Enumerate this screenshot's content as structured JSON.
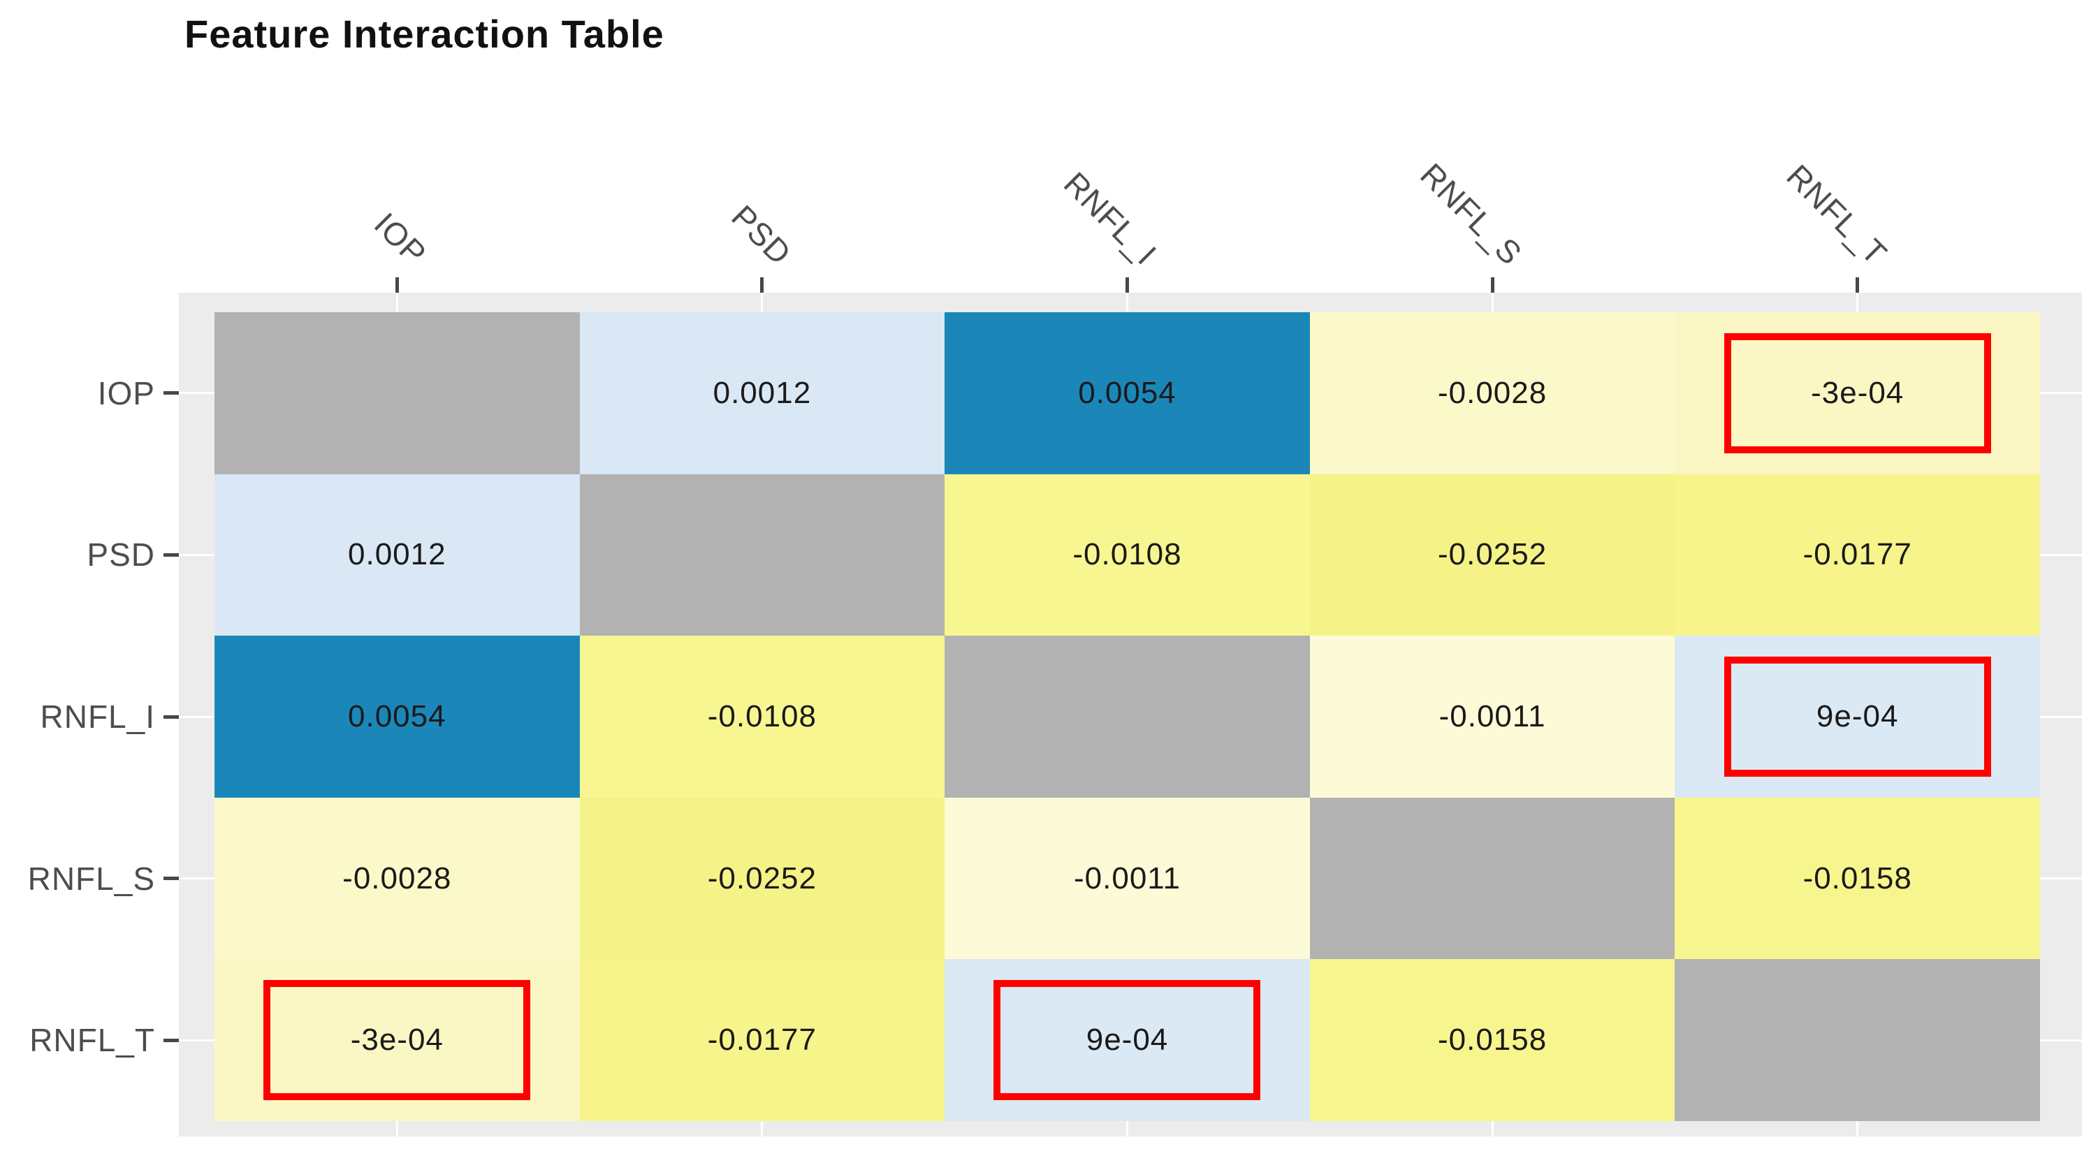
{
  "title": "Feature Interaction Table",
  "chart_data": {
    "type": "heatmap",
    "title": "Feature Interaction Table",
    "rows": [
      "IOP",
      "PSD",
      "RNFL_I",
      "RNFL_S",
      "RNFL_T"
    ],
    "columns": [
      "IOP",
      "PSD",
      "RNFL_I",
      "RNFL_S",
      "RNFL_T"
    ],
    "matrix": [
      [
        null,
        0.0012,
        0.0054,
        -0.0028,
        -0.0003
      ],
      [
        0.0012,
        null,
        -0.0108,
        -0.0252,
        -0.0177
      ],
      [
        0.0054,
        -0.0108,
        null,
        -0.0011,
        0.0009
      ],
      [
        -0.0028,
        -0.0252,
        -0.0011,
        null,
        -0.0158
      ],
      [
        -0.0003,
        -0.0177,
        0.0009,
        -0.0158,
        null
      ]
    ],
    "cell_labels": [
      [
        "",
        "0.0012",
        "0.0054",
        "-0.0028",
        "-3e-04"
      ],
      [
        "0.0012",
        "",
        "-0.0108",
        "-0.0252",
        "-0.0177"
      ],
      [
        "0.0054",
        "-0.0108",
        "",
        "-0.0011",
        "9e-04"
      ],
      [
        "-0.0028",
        "-0.0252",
        "-0.0011",
        "",
        "-0.0158"
      ],
      [
        "-3e-04",
        "-0.0177",
        "9e-04",
        "-0.0158",
        ""
      ]
    ],
    "highlighted_cells": [
      [
        0,
        4
      ],
      [
        2,
        4
      ],
      [
        4,
        0
      ],
      [
        4,
        2
      ]
    ],
    "legend_position": "none",
    "grid": "white major gridlines at tick positions",
    "colors": {
      "diagonal": "#B2B2B2",
      "panel_background": "#ECECEC",
      "gridline": "#FFFFFF",
      "highlight_box": "#FF0000",
      "value_text": "#1A1A1A",
      "axis_text": "#4D4D4D",
      "tick": "#474747",
      "by_value": {
        "0.0054": "#1B87B9",
        "0.0012": "#D9E8F4",
        "9e-04": "#DBE9F4",
        "-3e-04": "#FAF7C5",
        "-0.0011": "#FDFBD7",
        "-0.0028": "#FBF9C9",
        "-0.0108": "#F8F691",
        "-0.0158": "#F7F58D",
        "-0.0177": "#F6F48B",
        "-0.0252": "#F5F287"
      }
    }
  }
}
